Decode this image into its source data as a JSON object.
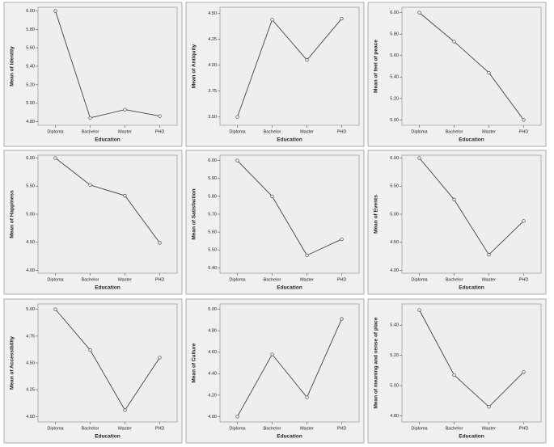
{
  "chart_data": [
    {
      "type": "line",
      "y_label": "Mean of Identity",
      "x_label": "Education",
      "categories": [
        "Diploma",
        "Bachelor",
        "Master",
        "PHD"
      ],
      "values": [
        6.0,
        4.84,
        4.93,
        4.86
      ],
      "color": "#444444",
      "ylim": [
        4.76,
        6.04
      ],
      "yticks": [
        {
          "value": 4.8,
          "label": "4.80"
        },
        {
          "value": 5.0,
          "label": "5.00"
        },
        {
          "value": 5.2,
          "label": "5.20"
        },
        {
          "value": 5.4,
          "label": "5.40"
        },
        {
          "value": 5.6,
          "label": "5.60"
        },
        {
          "value": 5.8,
          "label": "5.80"
        },
        {
          "value": 6.0,
          "label": "6.00"
        }
      ]
    },
    {
      "type": "line",
      "y_label": "Mean of Antiquity",
      "x_label": "Education",
      "categories": [
        "Diploma",
        "Bachelor",
        "Master",
        "PHD"
      ],
      "values": [
        3.5,
        4.44,
        4.05,
        4.45
      ],
      "color": "#444444",
      "ylim": [
        3.42,
        4.56
      ],
      "yticks": [
        {
          "value": 3.5,
          "label": "3.50"
        },
        {
          "value": 3.75,
          "label": "3.75"
        },
        {
          "value": 4.0,
          "label": "4.00"
        },
        {
          "value": 4.25,
          "label": "4.25"
        },
        {
          "value": 4.5,
          "label": "4.50"
        }
      ]
    },
    {
      "type": "line",
      "y_label": "Mean of feel of peace",
      "x_label": "Education",
      "categories": [
        "Diploma",
        "Bachelor",
        "Master",
        "PHD"
      ],
      "values": [
        6.0,
        5.73,
        5.44,
        5.0
      ],
      "color": "#444444",
      "ylim": [
        4.95,
        6.05
      ],
      "yticks": [
        {
          "value": 5.0,
          "label": "5.00"
        },
        {
          "value": 5.2,
          "label": "5.20"
        },
        {
          "value": 5.4,
          "label": "5.40"
        },
        {
          "value": 5.6,
          "label": "5.60"
        },
        {
          "value": 5.8,
          "label": "5.80"
        },
        {
          "value": 6.0,
          "label": "6.00"
        }
      ]
    },
    {
      "type": "line",
      "y_label": "Mean of Happiness",
      "x_label": "Education",
      "categories": [
        "Diploma",
        "Bachelor",
        "Master",
        "PHD"
      ],
      "values": [
        6.0,
        5.52,
        5.33,
        4.49
      ],
      "color": "#444444",
      "ylim": [
        3.95,
        6.05
      ],
      "yticks": [
        {
          "value": 4.0,
          "label": "4.00"
        },
        {
          "value": 4.5,
          "label": "4.50"
        },
        {
          "value": 5.0,
          "label": "5.00"
        },
        {
          "value": 5.5,
          "label": "5.50"
        },
        {
          "value": 6.0,
          "label": "6.00"
        }
      ]
    },
    {
      "type": "line",
      "y_label": "Mean of Satisfaction",
      "x_label": "Education",
      "categories": [
        "Diploma",
        "Bachelor",
        "Master",
        "PHD"
      ],
      "values": [
        6.0,
        5.8,
        5.47,
        5.56
      ],
      "color": "#444444",
      "ylim": [
        5.37,
        6.03
      ],
      "yticks": [
        {
          "value": 5.4,
          "label": "5.40"
        },
        {
          "value": 5.5,
          "label": "5.50"
        },
        {
          "value": 5.6,
          "label": "5.60"
        },
        {
          "value": 5.7,
          "label": "5.70"
        },
        {
          "value": 5.8,
          "label": "5.80"
        },
        {
          "value": 5.9,
          "label": "5.90"
        },
        {
          "value": 6.0,
          "label": "6.00"
        }
      ]
    },
    {
      "type": "line",
      "y_label": "Mean of Events",
      "x_label": "Education",
      "categories": [
        "Diploma",
        "Bachelor",
        "Master",
        "PHD"
      ],
      "values": [
        6.0,
        5.26,
        4.28,
        4.88
      ],
      "color": "#444444",
      "ylim": [
        3.95,
        6.05
      ],
      "yticks": [
        {
          "value": 4.0,
          "label": "4.00"
        },
        {
          "value": 4.5,
          "label": "4.50"
        },
        {
          "value": 5.0,
          "label": "5.00"
        },
        {
          "value": 5.5,
          "label": "5.50"
        },
        {
          "value": 6.0,
          "label": "6.00"
        }
      ]
    },
    {
      "type": "line",
      "y_label": "Mean of Accessibility",
      "x_label": "Education",
      "categories": [
        "Diploma",
        "Bachelor",
        "Master",
        "PHD"
      ],
      "values": [
        5.0,
        4.62,
        4.06,
        4.55
      ],
      "color": "#444444",
      "ylim": [
        3.95,
        5.05
      ],
      "yticks": [
        {
          "value": 4.0,
          "label": "4.00"
        },
        {
          "value": 4.25,
          "label": "4.25"
        },
        {
          "value": 4.5,
          "label": "4.50"
        },
        {
          "value": 4.75,
          "label": "4.75"
        },
        {
          "value": 5.0,
          "label": "5.00"
        }
      ]
    },
    {
      "type": "line",
      "y_label": "Mean of Culture",
      "x_label": "Education",
      "categories": [
        "Diploma",
        "Bachelor",
        "Master",
        "PHD"
      ],
      "values": [
        4.0,
        4.58,
        4.18,
        4.91
      ],
      "color": "#444444",
      "ylim": [
        3.95,
        5.05
      ],
      "yticks": [
        {
          "value": 4.0,
          "label": "4.00"
        },
        {
          "value": 4.2,
          "label": "4.20"
        },
        {
          "value": 4.4,
          "label": "4.40"
        },
        {
          "value": 4.6,
          "label": "4.60"
        },
        {
          "value": 4.8,
          "label": "4.80"
        },
        {
          "value": 5.0,
          "label": "5.00"
        }
      ]
    },
    {
      "type": "line",
      "y_label": "Mean of meaning and sense of place",
      "x_label": "Education",
      "categories": [
        "Diploma",
        "Bachelor",
        "Master",
        "PHD"
      ],
      "values": [
        5.5,
        5.07,
        4.86,
        5.09
      ],
      "color": "#444444",
      "ylim": [
        4.76,
        5.54
      ],
      "yticks": [
        {
          "value": 4.8,
          "label": "4.80"
        },
        {
          "value": 5.0,
          "label": "5.00"
        },
        {
          "value": 5.2,
          "label": "5.20"
        },
        {
          "value": 5.4,
          "label": "5.40"
        }
      ]
    }
  ]
}
